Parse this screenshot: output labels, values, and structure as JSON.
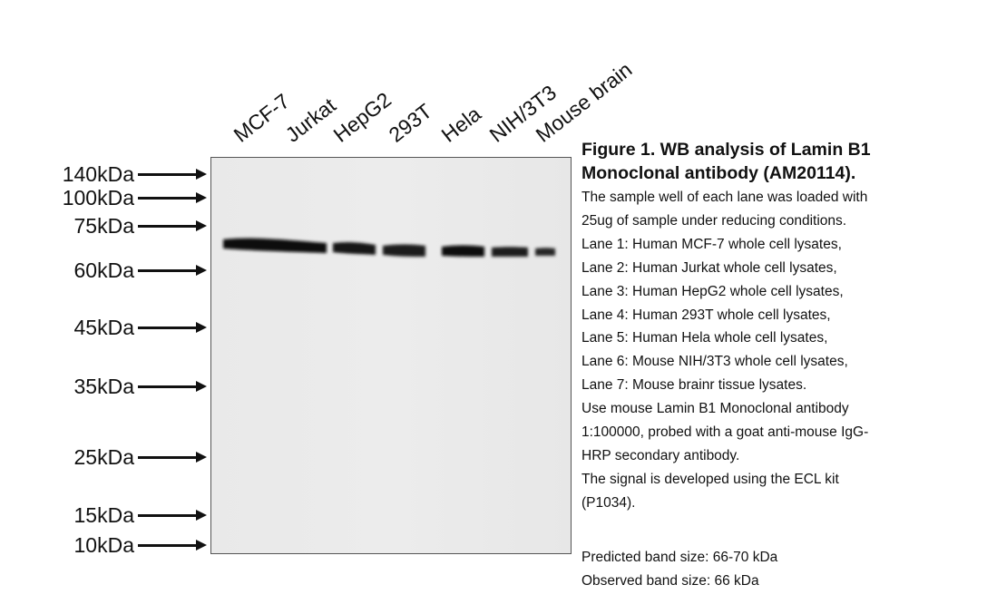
{
  "lanes": [
    "MCF-7",
    "Jurkat",
    "HepG2",
    "293T",
    "Hela",
    "NIH/3T3",
    "Mouse brain"
  ],
  "markers": [
    "140kDa",
    "100kDa",
    "75kDa",
    "60kDa",
    "45kDa",
    "35kDa",
    "25kDa",
    "15kDa",
    "10kDa"
  ],
  "caption": {
    "title_line1": "Figure 1. WB analysis of Lamin B1",
    "title_line2": "Monoclonal antibody (AM20114).",
    "lines": [
      "The sample well of each lane was loaded with",
      "25ug of sample under reducing conditions.",
      "Lane 1: Human MCF-7 whole cell lysates,",
      "Lane 2: Human Jurkat whole cell lysates,",
      "Lane 3: Human HepG2 whole cell lysates,",
      "Lane 4: Human 293T whole cell lysates,",
      "Lane 5: Human Hela whole cell lysates,",
      "Lane 6: Mouse NIH/3T3 whole cell lysates,",
      "Lane 7: Mouse brainr tissue lysates.",
      "Use mouse Lamin B1 Monoclonal antibody",
      "1:100000, probed with a goat anti-mouse IgG-",
      "HRP secondary antibody.",
      "The signal is developed using the ECL kit",
      "(P1034)."
    ]
  },
  "band_info": {
    "predicted": "Predicted band size: 66-70 kDa",
    "observed": "Observed band size: 66 kDa"
  }
}
